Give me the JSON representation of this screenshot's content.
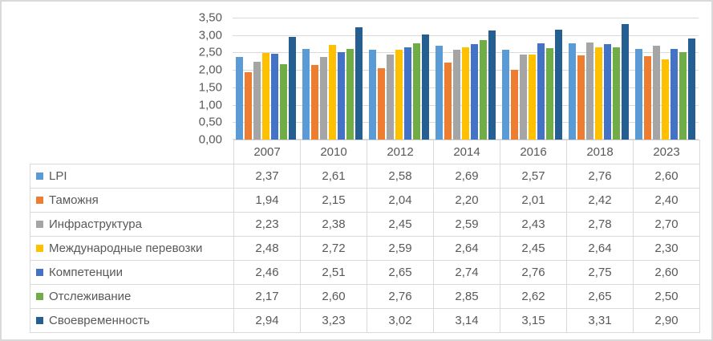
{
  "chart_data": {
    "type": "bar",
    "title": "",
    "xlabel": "",
    "ylabel": "",
    "categories": [
      "2007",
      "2010",
      "2012",
      "2014",
      "2016",
      "2018",
      "2023"
    ],
    "series": [
      {
        "name": "LPI",
        "color": "#5B9BD5",
        "values": [
          "2,37",
          "2,61",
          "2,58",
          "2,69",
          "2,57",
          "2,76",
          "2,60"
        ]
      },
      {
        "name": "Таможня",
        "color": "#ED7D31",
        "values": [
          "1,94",
          "2,15",
          "2,04",
          "2,20",
          "2,01",
          "2,42",
          "2,40"
        ]
      },
      {
        "name": "Инфраструктура",
        "color": "#A5A5A5",
        "values": [
          "2,23",
          "2,38",
          "2,45",
          "2,59",
          "2,43",
          "2,78",
          "2,70"
        ]
      },
      {
        "name": "Международные перевозки",
        "color": "#FFC000",
        "values": [
          "2,48",
          "2,72",
          "2,59",
          "2,64",
          "2,45",
          "2,64",
          "2,30"
        ]
      },
      {
        "name": "Компетенции",
        "color": "#4472C4",
        "values": [
          "2,46",
          "2,51",
          "2,65",
          "2,74",
          "2,76",
          "2,75",
          "2,60"
        ]
      },
      {
        "name": "Отслеживание",
        "color": "#70AD47",
        "values": [
          "2,17",
          "2,60",
          "2,76",
          "2,85",
          "2,62",
          "2,65",
          "2,50"
        ]
      },
      {
        "name": "Своевременность",
        "color": "#255E91",
        "values": [
          "2,94",
          "3,23",
          "3,02",
          "3,14",
          "3,15",
          "3,31",
          "2,90"
        ]
      }
    ],
    "yticks": [
      "3,50",
      "3,00",
      "2,50",
      "2,00",
      "1,50",
      "1,00",
      "0,50",
      "0,00"
    ],
    "ylim": [
      0,
      3.5
    ],
    "ytick_step": 0.5,
    "grid": true,
    "legend_position": "table-left",
    "decimal_separator": ","
  },
  "style": {
    "gridline_color": "#d9d9d9",
    "axis_text_color": "#595959",
    "table_border_color": "#d9d9d9",
    "table_text_color": "#595959",
    "frame_border_color": "#d9d9d9",
    "background": "#ffffff"
  }
}
